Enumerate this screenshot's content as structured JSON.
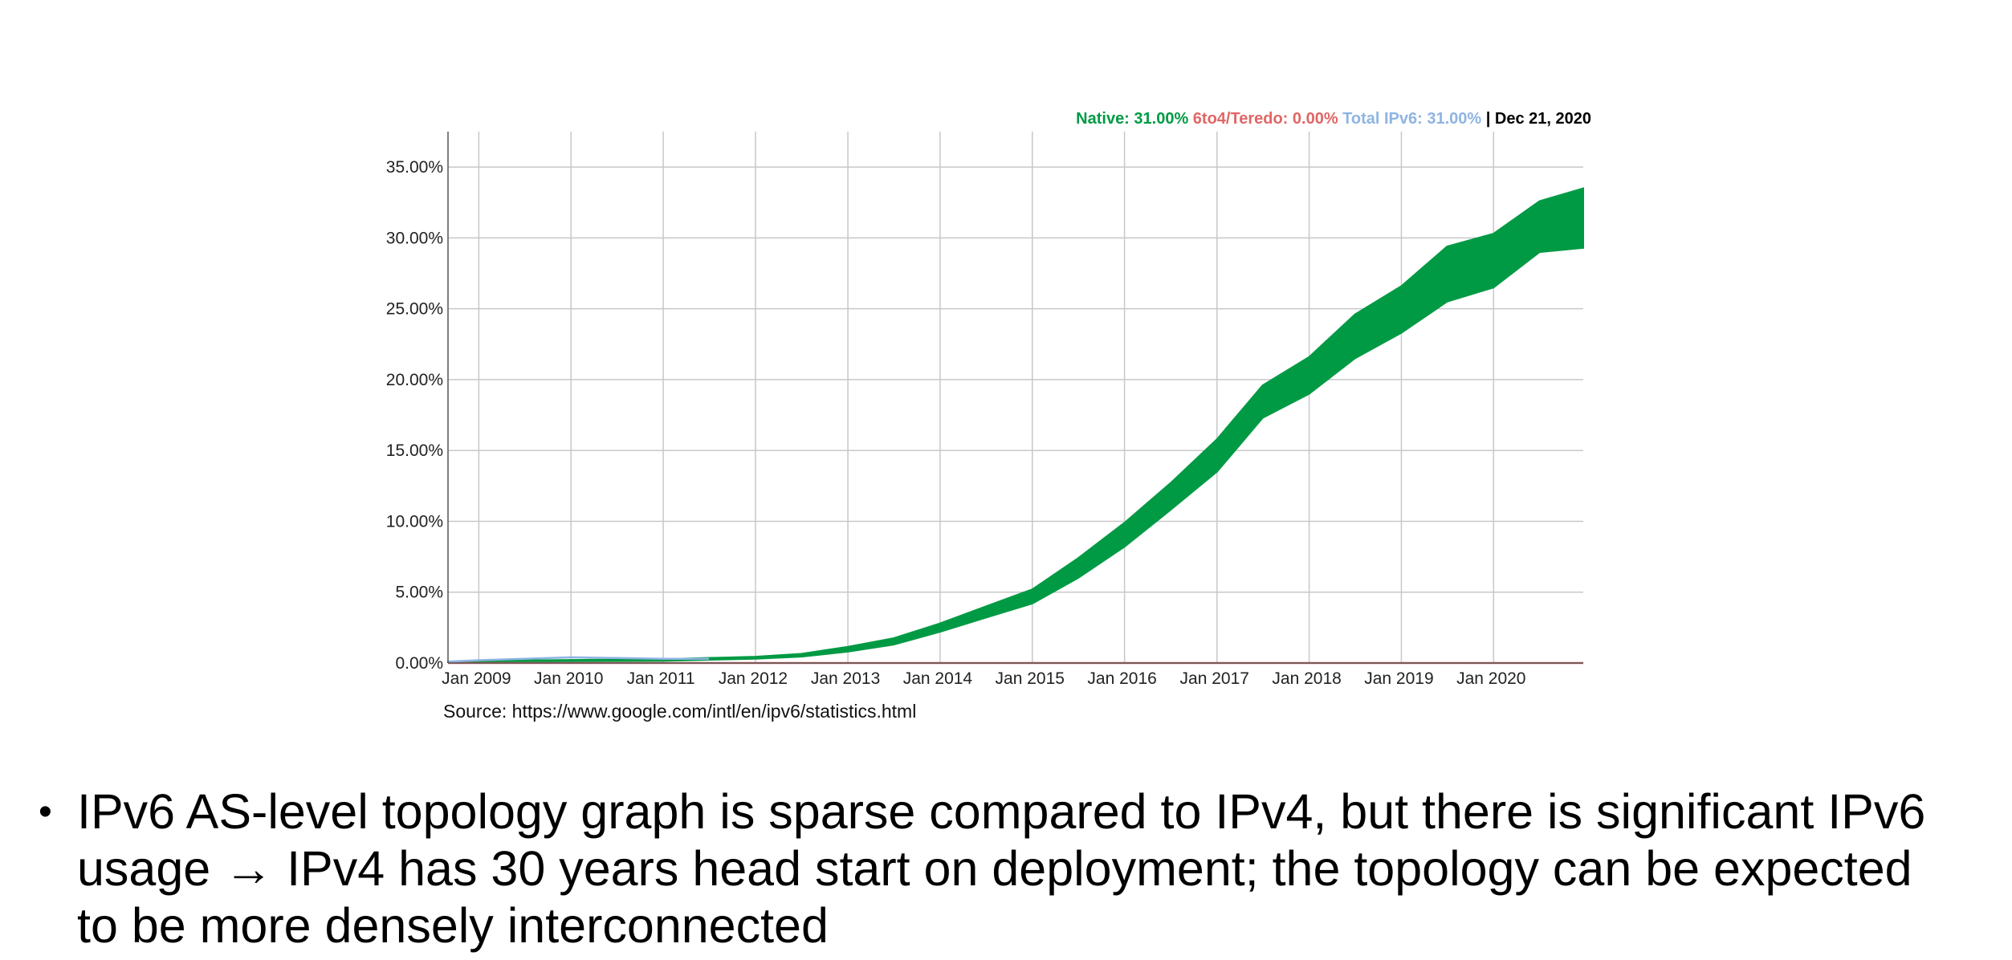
{
  "chart_data": {
    "type": "area",
    "title": "",
    "xlabel": "",
    "ylabel": "",
    "ylim": [
      0,
      37.5
    ],
    "yticks": [
      0,
      5,
      10,
      15,
      20,
      25,
      30,
      35
    ],
    "ytick_labels": [
      "0.00%",
      "5.00%",
      "10.00%",
      "15.00%",
      "20.00%",
      "25.00%",
      "30.00%",
      "35.00%"
    ],
    "xlim": [
      "2008-09-01",
      "2020-12-21"
    ],
    "xticks": [
      "2009-01-01",
      "2010-01-01",
      "2011-01-01",
      "2012-01-01",
      "2013-01-01",
      "2014-01-01",
      "2015-01-01",
      "2016-01-01",
      "2017-01-01",
      "2018-01-01",
      "2019-01-01",
      "2020-01-01"
    ],
    "xtick_labels": [
      "Jan 2009",
      "Jan 2010",
      "Jan 2011",
      "Jan 2012",
      "Jan 2013",
      "Jan 2014",
      "Jan 2015",
      "Jan 2016",
      "Jan 2017",
      "Jan 2018",
      "Jan 2019",
      "Jan 2020"
    ],
    "grid": true,
    "legend": {
      "position": "top-right",
      "entries": [
        {
          "label": "Native: 31.00%",
          "color": "#009a44"
        },
        {
          "label": "6to4/Teredo: 0.00%",
          "color": "#e06666"
        },
        {
          "label": "Total IPv6: 31.00%",
          "color": "#8fb4e3"
        }
      ],
      "date_text": "| Dec 21, 2020"
    },
    "series": [
      {
        "name": "Native",
        "color": "#009a44",
        "x": [
          "2008-09-01",
          "2009-01-01",
          "2010-01-01",
          "2011-01-01",
          "2012-01-01",
          "2012-07-01",
          "2013-01-01",
          "2013-07-01",
          "2014-01-01",
          "2014-07-01",
          "2015-01-01",
          "2015-07-01",
          "2016-01-01",
          "2016-07-01",
          "2017-01-01",
          "2017-07-01",
          "2018-01-01",
          "2018-07-01",
          "2019-01-01",
          "2019-07-01",
          "2020-01-01",
          "2020-07-01",
          "2020-12-21"
        ],
        "low": [
          0.05,
          0.1,
          0.12,
          0.15,
          0.3,
          0.45,
          0.8,
          1.3,
          2.2,
          3.2,
          4.2,
          6.0,
          8.2,
          10.8,
          13.5,
          17.3,
          19.0,
          21.5,
          23.3,
          25.5,
          26.5,
          29.0,
          29.3
        ],
        "high": [
          0.1,
          0.17,
          0.22,
          0.28,
          0.45,
          0.65,
          1.15,
          1.75,
          2.8,
          4.0,
          5.2,
          7.4,
          9.9,
          12.7,
          15.8,
          19.6,
          21.6,
          24.6,
          26.6,
          29.4,
          30.3,
          32.6,
          33.5
        ]
      },
      {
        "name": "6to4/Teredo",
        "color": "#e06666",
        "x": [
          "2008-09-01",
          "2020-12-21"
        ],
        "values": [
          0.0,
          0.0
        ]
      },
      {
        "name": "Total IPv6",
        "color": "#8fb4e3",
        "x": [
          "2008-09-01",
          "2009-01-01",
          "2009-07-01",
          "2010-01-01",
          "2010-07-01",
          "2011-01-01",
          "2011-07-01"
        ],
        "values": [
          0.1,
          0.2,
          0.3,
          0.4,
          0.35,
          0.3,
          0.3
        ]
      }
    ],
    "source": "Source: https://www.google.com/intl/en/ipv6/statistics.html"
  },
  "bullet": {
    "symbol": "•",
    "lines": [
      "IPv6 AS-level topology graph is sparse compared to IPv4, but there is significant IPv6",
      "usage → IPv4 has 30 years head start on deployment; the topology can be expected",
      "to be more densely interconnected"
    ]
  }
}
